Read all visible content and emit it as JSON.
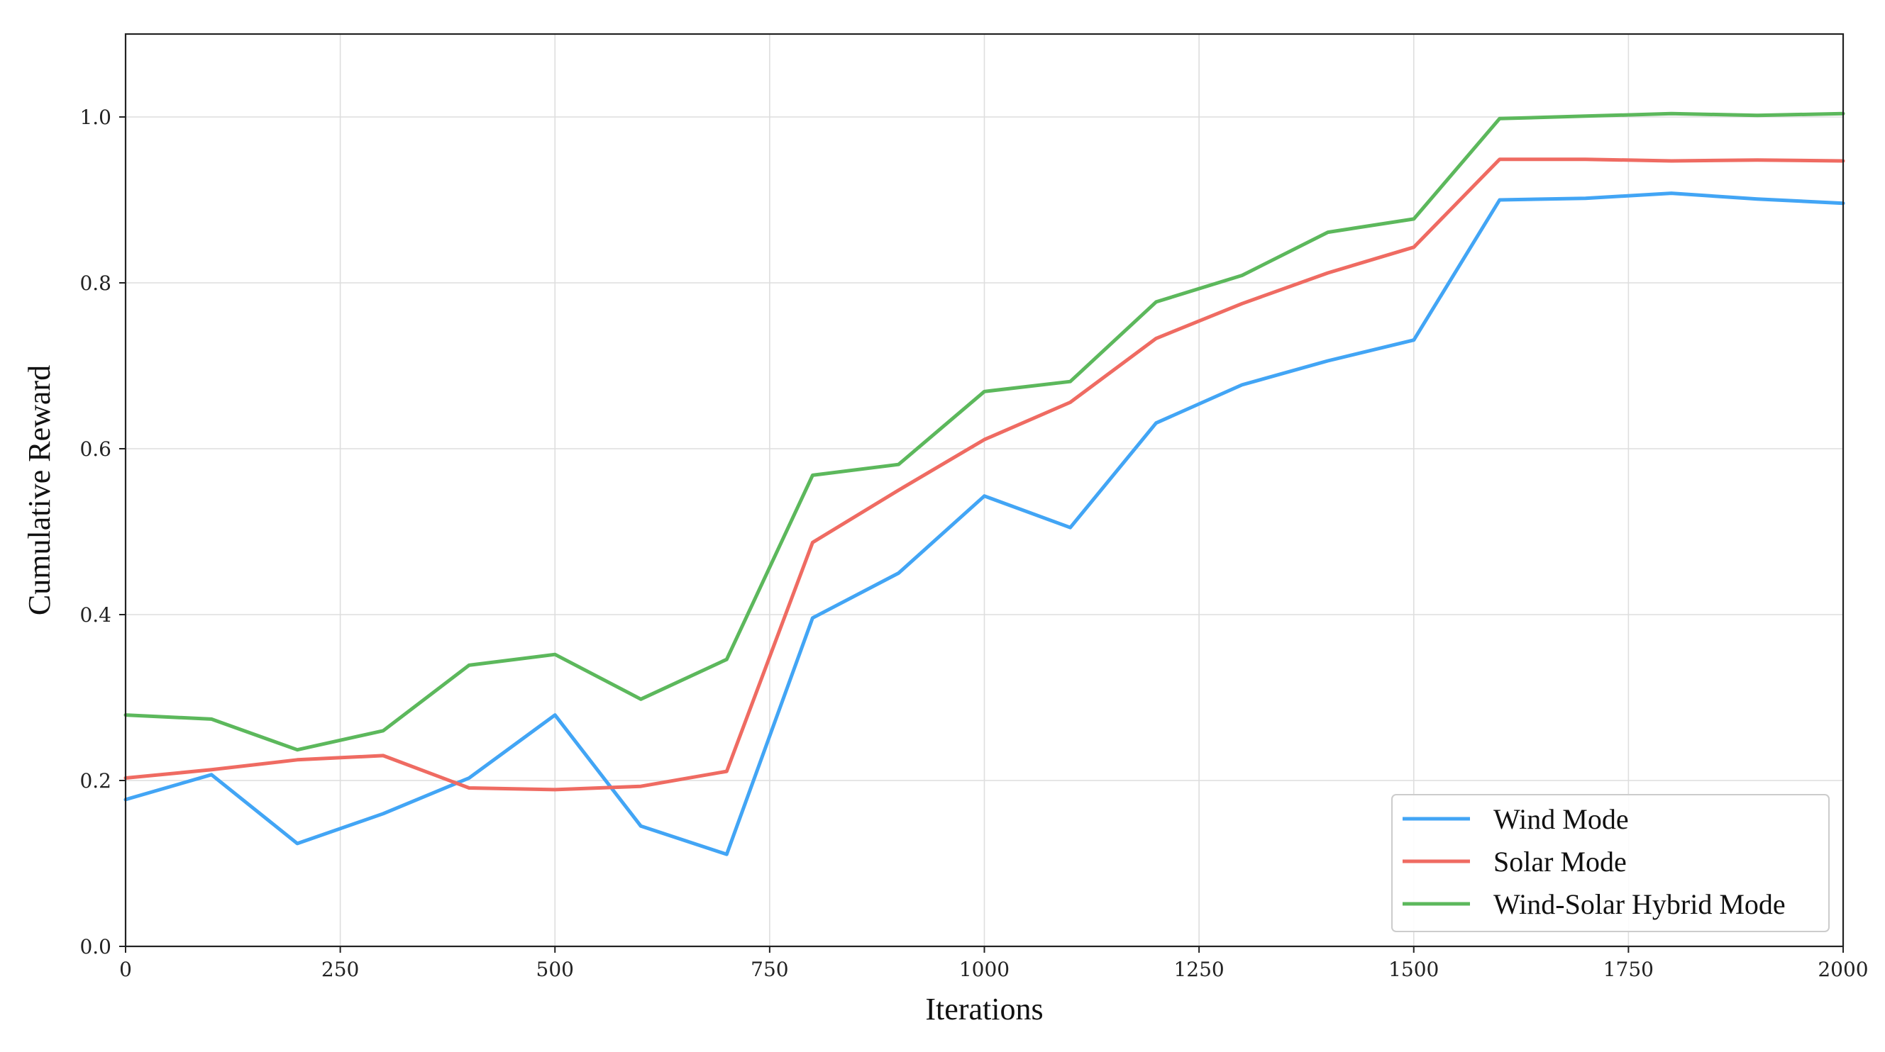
{
  "chart_data": {
    "type": "line",
    "title": "",
    "xlabel": "Iterations",
    "ylabel": "Cumulative Reward",
    "xlim": [
      0,
      2000
    ],
    "ylim": [
      0,
      1.1
    ],
    "xticks": [
      0,
      250,
      500,
      750,
      1000,
      1250,
      1500,
      1750,
      2000
    ],
    "xtick_labels": [
      "0",
      "250",
      "500",
      "750",
      "1000",
      "1250",
      "1500",
      "1750",
      "2000"
    ],
    "yticks": [
      0.0,
      0.2,
      0.4,
      0.6,
      0.8,
      1.0
    ],
    "ytick_labels": [
      "0.0",
      "0.2",
      "0.4",
      "0.6",
      "0.8",
      "1.0"
    ],
    "grid": true,
    "legend_position": "lower-right",
    "x": [
      0,
      100,
      200,
      300,
      400,
      500,
      600,
      700,
      800,
      900,
      1000,
      1100,
      1200,
      1300,
      1400,
      1500,
      1600,
      1700,
      1800,
      1900,
      2000
    ],
    "series": [
      {
        "name": "Wind Mode",
        "color": "#42a5f5",
        "values": [
          0.177,
          0.207,
          0.124,
          0.16,
          0.203,
          0.279,
          0.145,
          0.111,
          0.396,
          0.45,
          0.543,
          0.505,
          0.631,
          0.677,
          0.706,
          0.731,
          0.9,
          0.902,
          0.908,
          0.901,
          0.896
        ]
      },
      {
        "name": "Solar Mode",
        "color": "#ef6b62",
        "values": [
          0.203,
          0.213,
          0.225,
          0.23,
          0.191,
          0.189,
          0.193,
          0.211,
          0.487,
          0.55,
          0.611,
          0.656,
          0.733,
          0.775,
          0.812,
          0.843,
          0.949,
          0.949,
          0.947,
          0.948,
          0.947
        ]
      },
      {
        "name": "Wind-Solar Hybrid Mode",
        "color": "#5cb85c",
        "values": [
          0.279,
          0.274,
          0.237,
          0.26,
          0.339,
          0.352,
          0.298,
          0.346,
          0.568,
          0.581,
          0.669,
          0.681,
          0.777,
          0.809,
          0.861,
          0.877,
          0.998,
          1.001,
          1.004,
          1.002,
          1.004
        ]
      }
    ]
  }
}
